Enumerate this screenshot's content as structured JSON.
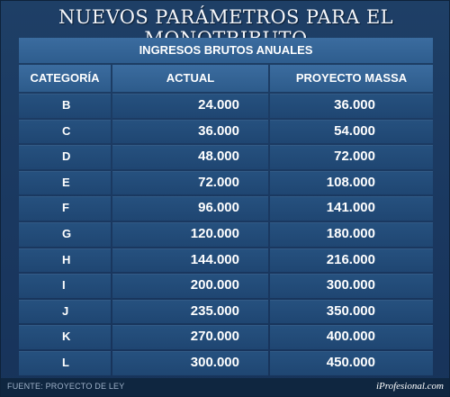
{
  "title": "NUEVOS PARÁMETROS PARA EL MONOTRIBUTO",
  "table": {
    "group_header": "INGRESOS BRUTOS ANUALES",
    "columns": [
      "CATEGORÍA",
      "ACTUAL",
      "PROYECTO MASSA"
    ],
    "rows": [
      [
        "B",
        "24.000",
        "36.000"
      ],
      [
        "C",
        "36.000",
        "54.000"
      ],
      [
        "D",
        "48.000",
        "72.000"
      ],
      [
        "E",
        "72.000",
        "108.000"
      ],
      [
        "F",
        "96.000",
        "141.000"
      ],
      [
        "G",
        "120.000",
        "180.000"
      ],
      [
        "H",
        "144.000",
        "216.000"
      ],
      [
        "I",
        "200.000",
        "300.000"
      ],
      [
        "J",
        "235.000",
        "350.000"
      ],
      [
        "K",
        "270.000",
        "400.000"
      ],
      [
        "L",
        "300.000",
        "450.000"
      ]
    ]
  },
  "footer": {
    "source": "FUENTE: PROYECTO DE LEY",
    "brand": "iProfesional.com"
  },
  "colors": {
    "background": "#1e3f66",
    "header_cell": "#3b6c9f",
    "data_cell": "#26517f",
    "footer_bar": "#0f2640"
  }
}
